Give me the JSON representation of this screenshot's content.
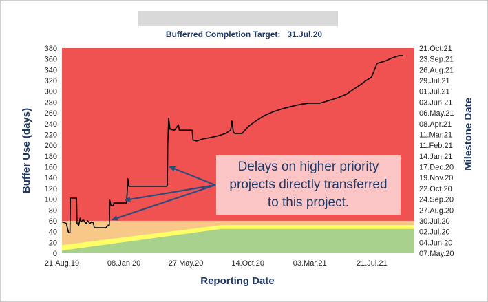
{
  "header": {
    "target_label": "Bufferred Completion Target:",
    "target_value": "31.Jul.20"
  },
  "chart_data": {
    "type": "line",
    "title": "Bufferred Completion Target:   31.Jul.20",
    "xlabel": "Reporting Date",
    "ylabel": "Buffer Use (days)",
    "y2label": "Milestone Date",
    "xlim": [
      "2019-08-21",
      "2021-10-25"
    ],
    "ylim": [
      0,
      380
    ],
    "x_ticks": [
      "21.Aug.19",
      "08.Jan.20",
      "27.May.20",
      "14.Oct.20",
      "03.Mar.21",
      "21.Jul.21"
    ],
    "y_ticks": [
      0,
      20,
      40,
      60,
      80,
      100,
      120,
      140,
      160,
      180,
      200,
      220,
      240,
      260,
      280,
      300,
      320,
      340,
      360,
      380
    ],
    "y2_ticks": [
      "07.May.20",
      "04.Jun.20",
      "02.Jul.20",
      "30.Jul.20",
      "27.Aug.20",
      "24.Sep.20",
      "22.Oct.20",
      "19.Nov.20",
      "17.Dec.20",
      "14.Jan.21",
      "11.Feb.21",
      "11.Mar.21",
      "08.Apr.21",
      "06.May.21",
      "03.Jun.21",
      "01.Jul.21",
      "29.Jul.21",
      "26.Aug.21",
      "23.Sep.21",
      "21.Oct.21"
    ],
    "zones": {
      "colors": {
        "green": "#a9d18e",
        "yellow": "#ffff66",
        "orange": "#f8c888",
        "red": "#f05252"
      },
      "green_top": {
        "x": [
          "2019-08-21",
          "2020-08-15",
          "2021-10-25"
        ],
        "y": [
          5,
          45,
          45
        ]
      },
      "yellow_top": {
        "x": [
          "2019-08-21",
          "2020-08-15",
          "2021-10-25"
        ],
        "y": [
          15,
          52,
          52
        ]
      },
      "orange_top": {
        "x": [
          "2019-08-21",
          "2021-10-25"
        ],
        "y": [
          60,
          60
        ]
      }
    },
    "series": [
      {
        "color": "#000000",
        "points": [
          [
            "2019-08-21",
            58
          ],
          [
            "2019-08-26",
            57
          ],
          [
            "2019-08-31",
            55
          ],
          [
            "2019-09-05",
            38
          ],
          [
            "2019-09-08",
            38
          ],
          [
            "2019-09-09",
            102
          ],
          [
            "2019-09-23",
            102
          ],
          [
            "2019-09-24",
            55
          ],
          [
            "2019-09-28",
            52
          ],
          [
            "2019-10-01",
            65
          ],
          [
            "2019-10-03",
            58
          ],
          [
            "2019-10-08",
            62
          ],
          [
            "2019-10-14",
            55
          ],
          [
            "2019-10-18",
            60
          ],
          [
            "2019-10-23",
            55
          ],
          [
            "2019-10-27",
            58
          ],
          [
            "2019-10-31",
            56
          ],
          [
            "2019-11-02",
            47
          ],
          [
            "2019-11-15",
            47
          ],
          [
            "2019-11-28",
            47
          ],
          [
            "2019-12-04",
            52
          ],
          [
            "2019-12-06",
            52
          ],
          [
            "2019-12-07",
            98
          ],
          [
            "2019-12-10",
            88
          ],
          [
            "2019-12-15",
            88
          ],
          [
            "2019-12-16",
            93
          ],
          [
            "2020-01-14",
            93
          ],
          [
            "2020-01-15",
            110
          ],
          [
            "2020-01-17",
            138
          ],
          [
            "2020-01-19",
            124
          ],
          [
            "2020-04-14",
            124
          ],
          [
            "2020-04-15",
            127
          ],
          [
            "2020-04-16",
            200
          ],
          [
            "2020-04-18",
            250
          ],
          [
            "2020-04-21",
            230
          ],
          [
            "2020-05-01",
            228
          ],
          [
            "2020-05-10",
            238
          ],
          [
            "2020-05-12",
            228
          ],
          [
            "2020-06-10",
            228
          ],
          [
            "2020-06-12",
            210
          ],
          [
            "2020-06-20",
            208
          ],
          [
            "2020-07-05",
            212
          ],
          [
            "2020-07-20",
            214
          ],
          [
            "2020-08-10",
            218
          ],
          [
            "2020-08-25",
            222
          ],
          [
            "2020-09-05",
            228
          ],
          [
            "2020-09-08",
            245
          ],
          [
            "2020-09-11",
            225
          ],
          [
            "2020-09-14",
            222
          ],
          [
            "2020-10-01",
            222
          ],
          [
            "2020-10-15",
            235
          ],
          [
            "2020-11-01",
            245
          ],
          [
            "2020-11-20",
            255
          ],
          [
            "2020-12-10",
            262
          ],
          [
            "2021-01-01",
            268
          ],
          [
            "2021-01-20",
            272
          ],
          [
            "2021-02-10",
            276
          ],
          [
            "2021-03-01",
            278
          ],
          [
            "2021-03-25",
            278
          ],
          [
            "2021-04-15",
            283
          ],
          [
            "2021-05-05",
            288
          ],
          [
            "2021-05-25",
            295
          ],
          [
            "2021-06-10",
            304
          ],
          [
            "2021-06-25",
            312
          ],
          [
            "2021-07-08",
            320
          ],
          [
            "2021-07-20",
            326
          ],
          [
            "2021-07-28",
            342
          ],
          [
            "2021-08-02",
            352
          ],
          [
            "2021-08-20",
            356
          ],
          [
            "2021-09-05",
            362
          ],
          [
            "2021-09-20",
            366
          ],
          [
            "2021-09-30",
            366
          ]
        ]
      }
    ],
    "annotation": {
      "lines": [
        "Delays on higher priority",
        "projects directly transferred",
        "to this project."
      ],
      "arrow_targets": [
        [
          "2020-04-20",
          160
        ],
        [
          "2020-01-10",
          98
        ],
        [
          "2019-12-12",
          62
        ]
      ]
    }
  }
}
